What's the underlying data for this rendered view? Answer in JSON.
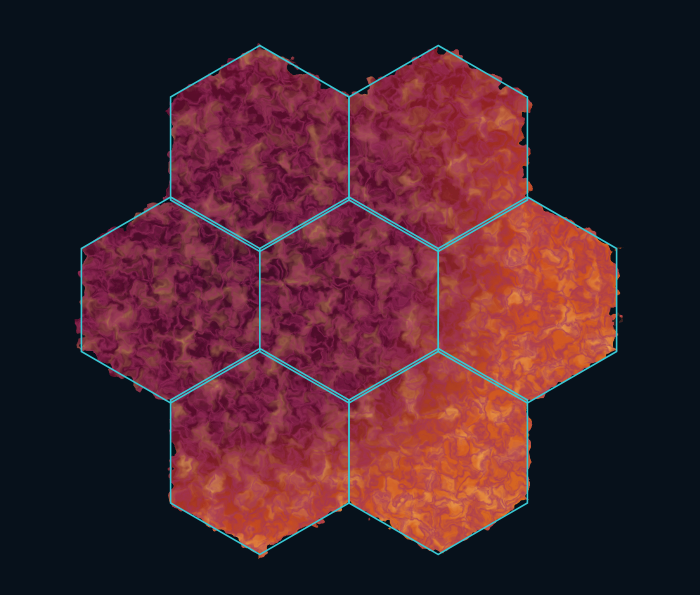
{
  "map": {
    "layer": "elevation",
    "grid": "hexagonal",
    "cell_count": 7,
    "cells": [
      {
        "id": "north-west",
        "relief": "low"
      },
      {
        "id": "north-east",
        "relief": "mixed"
      },
      {
        "id": "west",
        "relief": "low"
      },
      {
        "id": "center",
        "relief": "mixed"
      },
      {
        "id": "east",
        "relief": "high"
      },
      {
        "id": "south-west",
        "relief": "high"
      },
      {
        "id": "south-east",
        "relief": "high"
      }
    ]
  },
  "colors": {
    "background": "#07111b",
    "hex_outline": "#38c8d4",
    "elevation_low": "#4a0a2a",
    "elevation_mid": "#a3281e",
    "elevation_high": "#f08a2a",
    "elevation_peak": "#f7b24a"
  }
}
